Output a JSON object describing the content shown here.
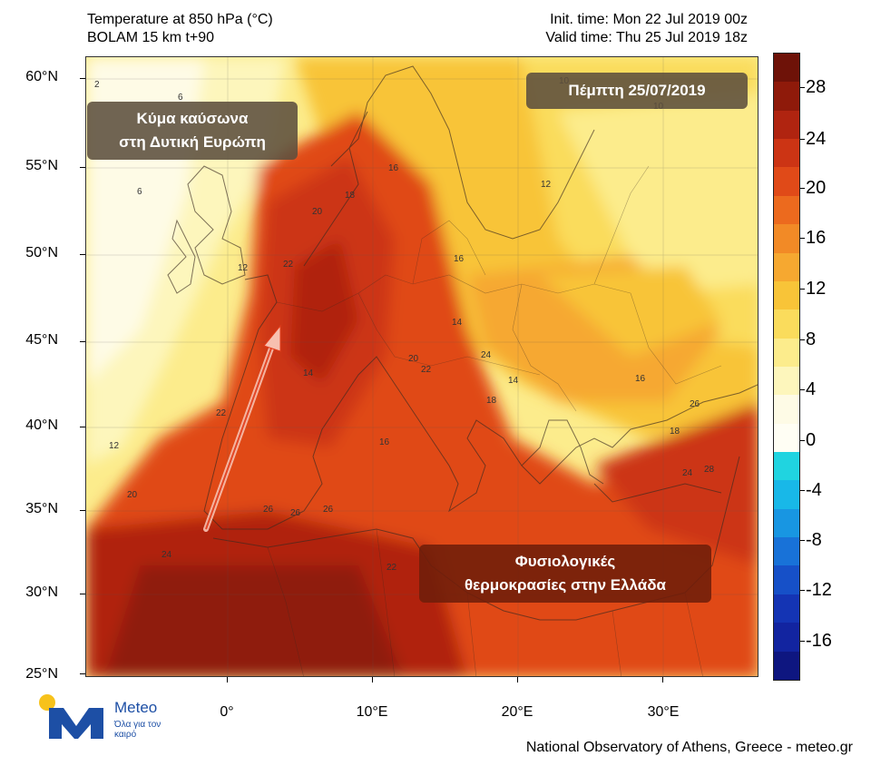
{
  "header": {
    "title_line1": "Temperature at 850 hPa (°C)",
    "title_line2": "BOLAM 15 km t+90",
    "init_time": "Init. time: Mon 22 Jul 2019 00z",
    "valid_time": "Valid time: Thu 25 Jul 2019 18z"
  },
  "axes": {
    "lat_labels": [
      "60°N",
      "55°N",
      "50°N",
      "45°N",
      "40°N",
      "35°N",
      "30°N",
      "25°N"
    ],
    "lon_labels": [
      "0°",
      "10°E",
      "20°E",
      "30°E"
    ]
  },
  "callouts": {
    "west_europe_line1": "Κύμα καύσωνα",
    "west_europe_line2": "στη Δυτική Ευρώπη",
    "date": "Πέμπτη 25/07/2019",
    "greece_line1": "Φυσιολογικές",
    "greece_line2": "θερμοκρασίες στην Ελλάδα"
  },
  "colorbar": {
    "labels": [
      "28",
      "24",
      "20",
      "16",
      "12",
      "8",
      "4",
      "0",
      "-4",
      "-8",
      "-12",
      "-16"
    ],
    "colors": [
      "#6e1208",
      "#8f1a0a",
      "#b02410",
      "#cc3414",
      "#e04a18",
      "#ec6a1e",
      "#f28a26",
      "#f6a830",
      "#f8c438",
      "#fadc5c",
      "#fcec8c",
      "#fdf6bc",
      "#fefbe6",
      "#fffef4",
      "#20d4e0",
      "#18b8e8",
      "#1896e2",
      "#1872d8",
      "#1650c8",
      "#1434b4",
      "#1224a0",
      "#0e1680"
    ]
  },
  "contour_labels": [
    "2",
    "6",
    "6",
    "10",
    "10",
    "12",
    "14",
    "16",
    "18",
    "20",
    "22",
    "24",
    "26",
    "26",
    "28",
    "22",
    "20",
    "16",
    "14",
    "12",
    "18",
    "26",
    "24",
    "22",
    "20",
    "16",
    "14",
    "12",
    "16",
    "18",
    "24",
    "26",
    "22"
  ],
  "logo": {
    "name": "Meteo",
    "tagline": "Όλα για τον καιρό"
  },
  "footer": "National Observatory of Athens, Greece - meteo.gr"
}
